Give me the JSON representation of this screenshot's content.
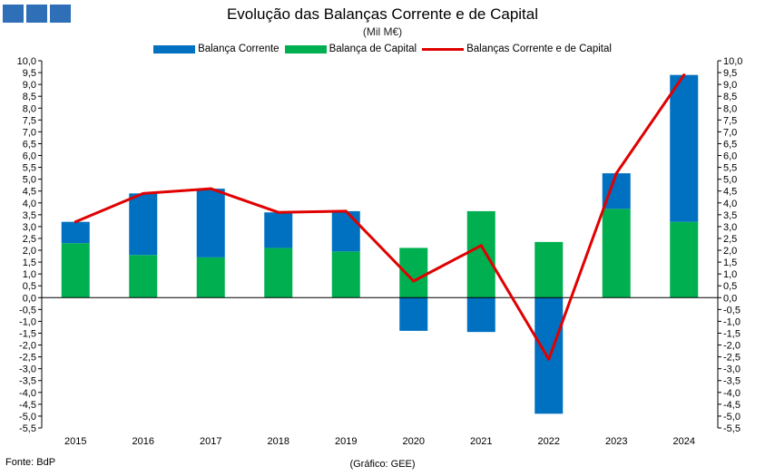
{
  "logo": {
    "color": "#2e6fb7"
  },
  "header": {
    "title": "Evolução das Balanças Corrente e de Capital",
    "subtitle": "(Mil M€)"
  },
  "legend": [
    {
      "label": "Balança Corrente",
      "color": "#0070c0",
      "kind": "bar"
    },
    {
      "label": "Balança de Capital",
      "color": "#00b050",
      "kind": "bar"
    },
    {
      "label": "Balanças Corrente e de Capital",
      "color": "#e00000",
      "kind": "line"
    }
  ],
  "footer": {
    "source": "Fonte: BdP",
    "credit": "(Gráfico: GEE)"
  },
  "chart_data": {
    "type": "bar",
    "stacked": true,
    "categories": [
      "2015",
      "2016",
      "2017",
      "2018",
      "2019",
      "2020",
      "2021",
      "2022",
      "2023",
      "2024"
    ],
    "series": [
      {
        "name": "Balança Corrente",
        "type": "bar",
        "color": "#0070c0",
        "values": [
          0.9,
          2.6,
          2.9,
          1.5,
          1.7,
          -1.4,
          -1.45,
          -4.9,
          1.5,
          6.2
        ]
      },
      {
        "name": "Balança de Capital",
        "type": "bar",
        "color": "#00b050",
        "values": [
          2.3,
          1.8,
          1.7,
          2.1,
          1.95,
          2.1,
          3.65,
          2.35,
          3.75,
          3.2
        ]
      },
      {
        "name": "Balanças Corrente e de Capital",
        "type": "line",
        "color": "#e00000",
        "values": [
          3.2,
          4.4,
          4.6,
          3.6,
          3.65,
          0.7,
          2.2,
          -2.6,
          5.25,
          9.4
        ]
      }
    ],
    "ylim": [
      -5.5,
      10.0
    ],
    "ytick_step": 0.5,
    "yticks_labels": [
      "-5,5",
      "-5,0",
      "-4,5",
      "-4,0",
      "-3,5",
      "-3,0",
      "-2,5",
      "-2,0",
      "-1,5",
      "-1,0",
      "-0,5",
      "0,0",
      "0,5",
      "1,0",
      "1,5",
      "2,0",
      "2,5",
      "3,0",
      "3,5",
      "4,0",
      "4,5",
      "5,0",
      "5,5",
      "6,0",
      "6,5",
      "7,0",
      "7,5",
      "8,0",
      "8,5",
      "9,0",
      "9,5",
      "10,0"
    ],
    "secondary_axis": true,
    "grid": false,
    "legend_position": "top"
  }
}
